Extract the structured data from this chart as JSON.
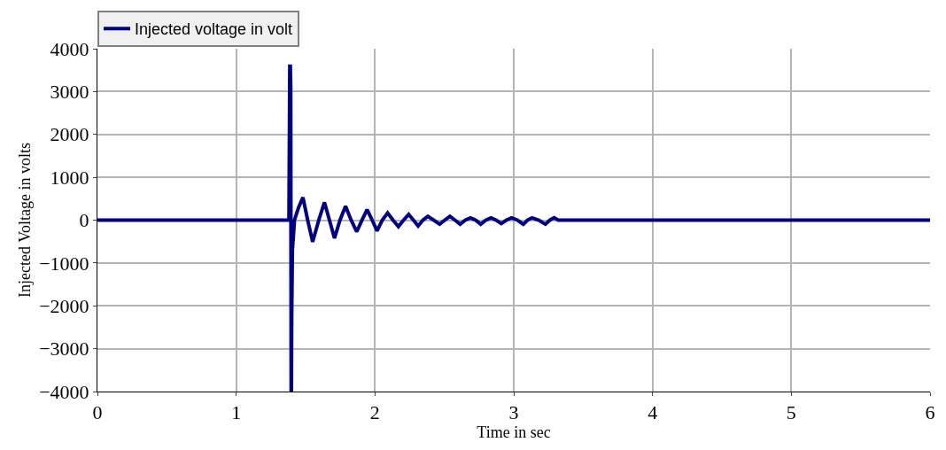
{
  "chart_data": {
    "type": "line",
    "xlabel": "Time in sec",
    "ylabel": "Injected Voltage in volts",
    "xlim": [
      0,
      6
    ],
    "xticks": [
      0,
      1,
      2,
      3,
      4,
      5,
      6
    ],
    "ylim": [
      -4000,
      4000
    ],
    "yticks": [
      -4000,
      -3000,
      -2000,
      -1000,
      0,
      1000,
      2000,
      3000,
      4000
    ],
    "grid": true,
    "legend": "top",
    "series": [
      {
        "name": "Injected voltage in volt",
        "color": "#000080",
        "x": [
          0,
          1.38,
          1.386,
          1.39,
          1.393,
          1.394,
          1.396,
          1.398,
          1.4,
          1.405,
          1.42,
          1.45,
          1.481,
          1.515,
          1.551,
          1.595,
          1.636,
          1.672,
          1.708,
          1.748,
          1.788,
          1.828,
          1.869,
          1.906,
          1.943,
          1.98,
          2.015,
          2.053,
          2.091,
          2.13,
          2.169,
          2.206,
          2.243,
          2.277,
          2.311,
          2.346,
          2.381,
          2.423,
          2.466,
          2.503,
          2.54,
          2.577,
          2.614,
          2.651,
          2.688,
          2.725,
          2.762,
          2.799,
          2.836,
          2.873,
          2.91,
          2.947,
          2.984,
          3.027,
          3.069,
          3.1,
          3.132,
          3.18,
          3.228,
          3.26,
          3.291,
          3.32,
          6
        ],
        "values": [
          0,
          0,
          3590,
          3590,
          3120,
          800,
          -4000,
          -4000,
          -2250,
          -700,
          0,
          300,
          530,
          0,
          -505,
          0,
          415,
          0,
          -420,
          0,
          327,
          0,
          -270,
          0,
          245,
          0,
          -250,
          0,
          170,
          0,
          -150,
          0,
          135,
          0,
          -135,
          0,
          90,
          0,
          -95,
          0,
          90,
          0,
          -95,
          0,
          55,
          0,
          -95,
          0,
          55,
          0,
          -80,
          0,
          55,
          0,
          -95,
          0,
          55,
          0,
          -95,
          0,
          55,
          0,
          0
        ]
      }
    ]
  }
}
